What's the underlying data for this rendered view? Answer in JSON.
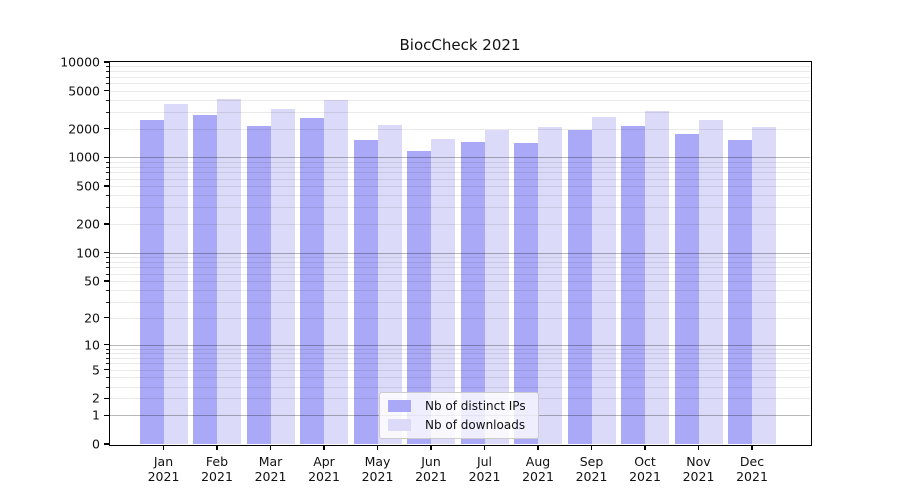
{
  "chart_data": {
    "type": "bar",
    "title": "BiocCheck 2021",
    "year": "2021",
    "categories": [
      "Jan",
      "Feb",
      "Mar",
      "Apr",
      "May",
      "Jun",
      "Jul",
      "Aug",
      "Sep",
      "Oct",
      "Nov",
      "Dec"
    ],
    "series": [
      {
        "name": "Nb of distinct IPs",
        "color": "#a9a9f7",
        "values": [
          2490,
          2790,
          2140,
          2600,
          1510,
          1170,
          1450,
          1430,
          1940,
          2140,
          1780,
          1530
        ]
      },
      {
        "name": "Nb of downloads",
        "color": "#dbdbf9",
        "values": [
          3640,
          4100,
          3220,
          4000,
          2190,
          1560,
          1940,
          2090,
          2650,
          3090,
          2440,
          2090
        ]
      }
    ],
    "yscale": "log10(1+x)",
    "yticks": [
      0,
      1,
      2,
      5,
      10,
      20,
      50,
      100,
      200,
      500,
      1000,
      2000,
      5000,
      10000
    ],
    "ylim": [
      0,
      10000
    ],
    "xlabel": "",
    "ylabel": "",
    "grid": "horizontal, darker lines at powers of 10, faint minor lines",
    "legend_position": "inside axes, lower center"
  }
}
